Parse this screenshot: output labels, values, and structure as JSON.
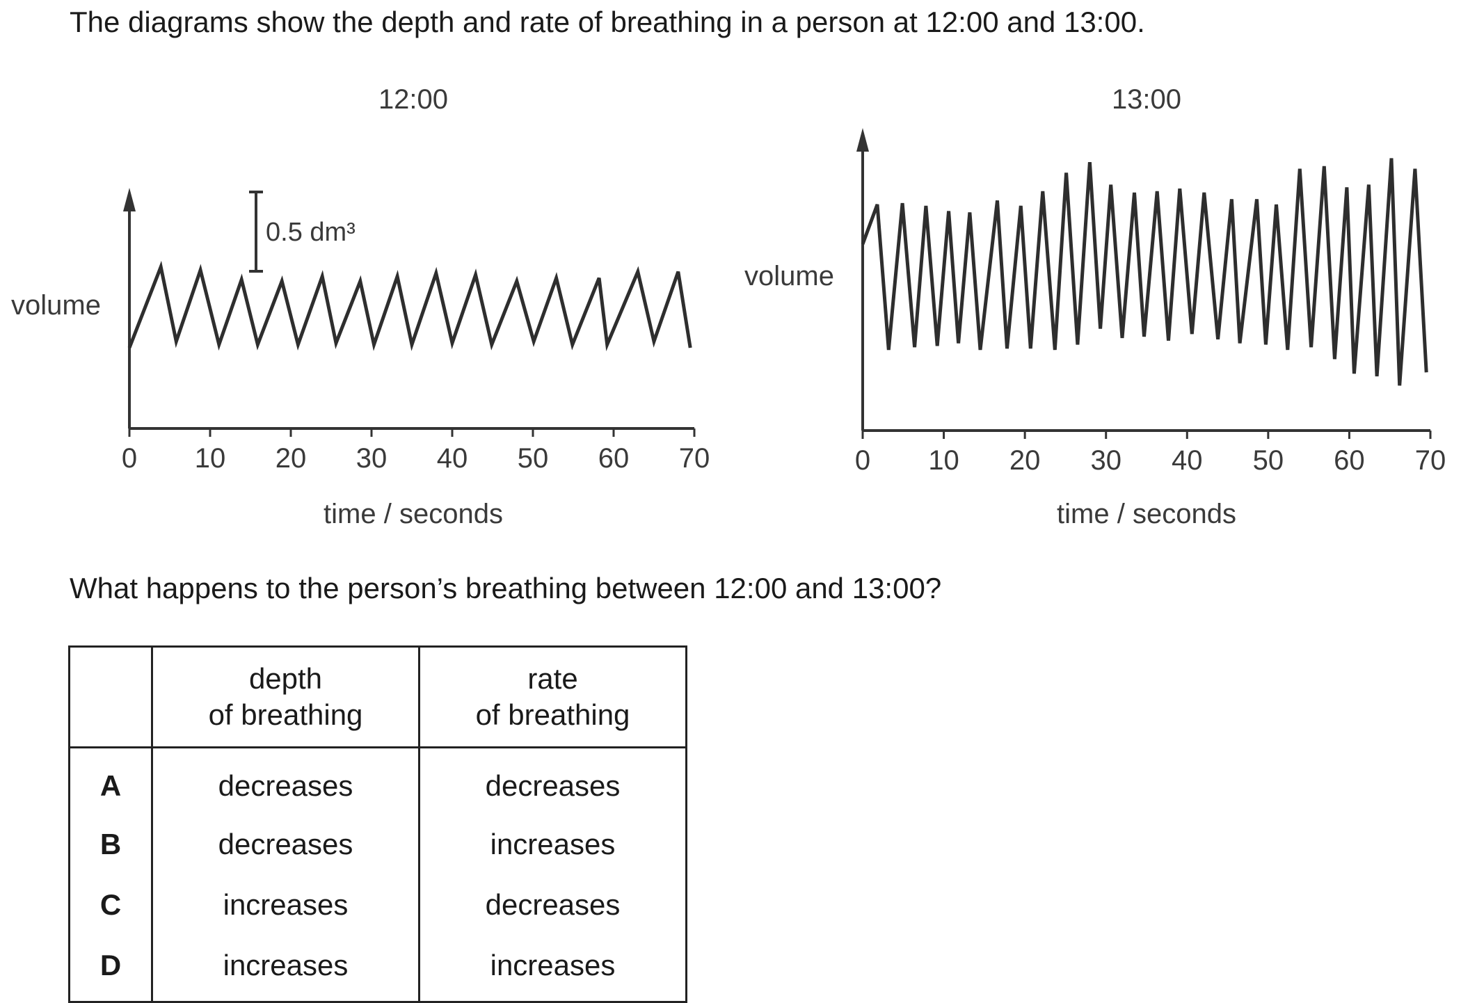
{
  "intro": "The diagrams show the depth and rate of breathing in a person at 12:00 and 13:00.",
  "question": "What happens to the person’s breathing between 12:00 and 13:00?",
  "chart_data": [
    {
      "type": "line",
      "title": "12:00",
      "xlabel": "time / seconds",
      "ylabel": "volume",
      "xlim": [
        0,
        70
      ],
      "xticks": [
        0,
        10,
        20,
        30,
        40,
        50,
        60,
        70
      ],
      "ylim": [
        -1.0,
        1.5
      ],
      "scale_bar": {
        "value": 0.5,
        "label": "0.5 dm³"
      },
      "x": [
        0,
        3.9,
        5.8,
        8.8,
        11.1,
        13.9,
        15.9,
        18.9,
        20.9,
        23.9,
        25.6,
        28.6,
        30.3,
        33.2,
        35.0,
        38.0,
        40.0,
        42.9,
        44.9,
        48.0,
        50.1,
        52.9,
        54.9,
        58.2,
        59.2,
        63.0,
        65.0,
        68.0,
        69.5
      ],
      "y": [
        0,
        0.51,
        0.04,
        0.49,
        0.02,
        0.43,
        0.02,
        0.42,
        0.02,
        0.45,
        0.03,
        0.42,
        0.02,
        0.45,
        0.02,
        0.47,
        0.03,
        0.46,
        0.02,
        0.42,
        0.04,
        0.44,
        0.02,
        0.44,
        0.02,
        0.48,
        0.04,
        0.48,
        0.0
      ]
    },
    {
      "type": "line",
      "title": "13:00",
      "xlabel": "time / seconds",
      "ylabel": "volume",
      "xlim": [
        0,
        70
      ],
      "xticks": [
        0,
        10,
        20,
        30,
        40,
        50,
        60,
        70
      ],
      "ylim": [
        -1.6,
        1.2
      ],
      "x": [
        0,
        1.8,
        3.2,
        4.9,
        6.4,
        7.8,
        9.2,
        10.6,
        11.8,
        13.2,
        14.5,
        16.6,
        17.8,
        19.5,
        20.7,
        22.2,
        23.7,
        25.1,
        26.5,
        28.0,
        29.3,
        30.6,
        32.0,
        33.5,
        34.7,
        36.3,
        37.7,
        39.1,
        40.6,
        42.1,
        43.8,
        45.5,
        46.5,
        48.6,
        49.7,
        51.0,
        52.4,
        53.9,
        55.3,
        56.9,
        58.2,
        59.7,
        60.6,
        62.4,
        63.4,
        65.2,
        66.2,
        68.1,
        69.5
      ],
      "y": [
        0.8,
        1.1,
        0.0,
        1.11,
        0.02,
        1.09,
        0.03,
        1.05,
        0.05,
        1.04,
        0.0,
        1.13,
        0.01,
        1.09,
        0.01,
        1.2,
        0.0,
        1.34,
        0.04,
        1.42,
        0.16,
        1.25,
        0.09,
        1.19,
        0.1,
        1.2,
        0.07,
        1.22,
        0.12,
        1.19,
        0.08,
        1.14,
        0.05,
        1.14,
        0.04,
        1.1,
        0.0,
        1.37,
        0.02,
        1.39,
        -0.07,
        1.23,
        -0.18,
        1.25,
        -0.2,
        1.45,
        -0.27,
        1.37,
        -0.17
      ]
    }
  ],
  "table": {
    "headers": [
      "",
      "depth\nof breathing",
      "rate\nof breathing"
    ],
    "header_lines": [
      [
        "",
        ""
      ],
      [
        "depth",
        "of breathing"
      ],
      [
        "rate",
        "of breathing"
      ]
    ],
    "rows": [
      {
        "letter": "A",
        "depth": "decreases",
        "rate": "decreases"
      },
      {
        "letter": "B",
        "depth": "decreases",
        "rate": "increases"
      },
      {
        "letter": "C",
        "depth": "increases",
        "rate": "decreases"
      },
      {
        "letter": "D",
        "depth": "increases",
        "rate": "increases"
      }
    ]
  }
}
